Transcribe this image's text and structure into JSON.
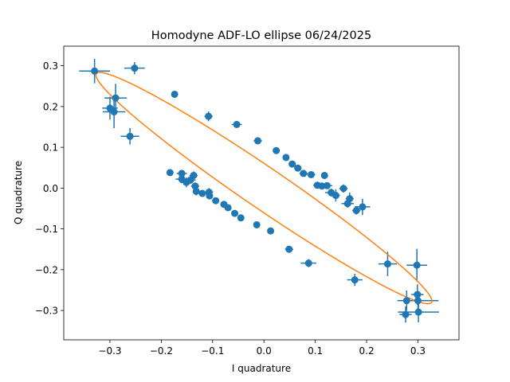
{
  "chart_data": {
    "type": "scatter",
    "title": "Homodyne ADF-LO ellipse 06/24/2025",
    "xlabel": "I quadrature",
    "ylabel": "Q quadrature",
    "xlim": [
      -0.39,
      0.38
    ],
    "ylim": [
      -0.372,
      0.348
    ],
    "xticks": [
      -0.3,
      -0.2,
      -0.1,
      0.0,
      0.1,
      0.2,
      0.3
    ],
    "xtick_labels": [
      "−0.3",
      "−0.2",
      "−0.1",
      "0.0",
      "0.1",
      "0.2",
      "0.3"
    ],
    "yticks": [
      -0.3,
      -0.2,
      -0.1,
      0.0,
      0.1,
      0.2,
      0.3
    ],
    "ytick_labels": [
      "−0.3",
      "−0.2",
      "−0.1",
      "0.0",
      "0.1",
      "0.2",
      "0.3"
    ],
    "grid": false,
    "colors": {
      "points": "#1f77b4",
      "fit": "#ff7f0e"
    },
    "series": [
      {
        "type": "errorbar",
        "points": [
          {
            "x": -0.33,
            "y": 0.287,
            "xerr": 0.03,
            "yerr": 0.03
          },
          {
            "x": -0.252,
            "y": 0.294,
            "xerr": 0.02,
            "yerr": 0.015
          },
          {
            "x": -0.289,
            "y": 0.221,
            "xerr": 0.022,
            "yerr": 0.035
          },
          {
            "x": -0.3,
            "y": 0.196,
            "xerr": 0.015,
            "yerr": 0.028
          },
          {
            "x": -0.292,
            "y": 0.187,
            "xerr": 0.022,
            "yerr": 0.04
          },
          {
            "x": -0.174,
            "y": 0.23,
            "xerr": 0.005,
            "yerr": 0.005
          },
          {
            "x": -0.108,
            "y": 0.176,
            "xerr": 0.008,
            "yerr": 0.012
          },
          {
            "x": -0.053,
            "y": 0.156,
            "xerr": 0.01,
            "yerr": 0.006
          },
          {
            "x": -0.012,
            "y": 0.116,
            "xerr": 0.008,
            "yerr": 0.006
          },
          {
            "x": 0.024,
            "y": 0.092,
            "xerr": 0.006,
            "yerr": 0.005
          },
          {
            "x": 0.043,
            "y": 0.075,
            "xerr": 0.006,
            "yerr": 0.005
          },
          {
            "x": 0.055,
            "y": 0.059,
            "xerr": 0.007,
            "yerr": 0.005
          },
          {
            "x": 0.066,
            "y": 0.049,
            "xerr": 0.007,
            "yerr": 0.005
          },
          {
            "x": 0.077,
            "y": 0.036,
            "xerr": 0.008,
            "yerr": 0.006
          },
          {
            "x": 0.092,
            "y": 0.033,
            "xerr": 0.008,
            "yerr": 0.006
          },
          {
            "x": 0.118,
            "y": 0.031,
            "xerr": 0.006,
            "yerr": 0.007
          },
          {
            "x": 0.104,
            "y": 0.007,
            "xerr": 0.008,
            "yerr": 0.008
          },
          {
            "x": 0.113,
            "y": 0.005,
            "xerr": 0.008,
            "yerr": 0.008
          },
          {
            "x": 0.123,
            "y": 0.006,
            "xerr": 0.01,
            "yerr": 0.008
          },
          {
            "x": 0.131,
            "y": -0.011,
            "xerr": 0.012,
            "yerr": 0.01
          },
          {
            "x": 0.14,
            "y": -0.018,
            "xerr": 0.008,
            "yerr": 0.015
          },
          {
            "x": 0.155,
            "y": -0.001,
            "xerr": 0.008,
            "yerr": 0.01
          },
          {
            "x": 0.163,
            "y": -0.038,
            "xerr": 0.012,
            "yerr": 0.01
          },
          {
            "x": 0.167,
            "y": -0.026,
            "xerr": 0.008,
            "yerr": 0.015
          },
          {
            "x": 0.18,
            "y": -0.055,
            "xerr": 0.008,
            "yerr": 0.01
          },
          {
            "x": 0.192,
            "y": -0.046,
            "xerr": 0.015,
            "yerr": 0.02
          },
          {
            "x": -0.261,
            "y": 0.127,
            "xerr": 0.018,
            "yerr": 0.02
          },
          {
            "x": -0.183,
            "y": 0.038,
            "xerr": 0.005,
            "yerr": 0.005
          },
          {
            "x": -0.16,
            "y": 0.036,
            "xerr": 0.01,
            "yerr": 0.008
          },
          {
            "x": -0.16,
            "y": 0.022,
            "xerr": 0.012,
            "yerr": 0.01
          },
          {
            "x": -0.151,
            "y": 0.014,
            "xerr": 0.012,
            "yerr": 0.012
          },
          {
            "x": -0.143,
            "y": 0.02,
            "xerr": 0.01,
            "yerr": 0.01
          },
          {
            "x": -0.137,
            "y": 0.031,
            "xerr": 0.008,
            "yerr": 0.01
          },
          {
            "x": -0.134,
            "y": 0.005,
            "xerr": 0.008,
            "yerr": 0.008
          },
          {
            "x": -0.132,
            "y": -0.008,
            "xerr": 0.006,
            "yerr": 0.01
          },
          {
            "x": -0.12,
            "y": -0.013,
            "xerr": 0.008,
            "yerr": 0.006
          },
          {
            "x": -0.107,
            "y": -0.01,
            "xerr": 0.008,
            "yerr": 0.01
          },
          {
            "x": -0.106,
            "y": -0.019,
            "xerr": 0.006,
            "yerr": 0.008
          },
          {
            "x": -0.094,
            "y": -0.031,
            "xerr": 0.005,
            "yerr": 0.005
          },
          {
            "x": -0.078,
            "y": -0.04,
            "xerr": 0.005,
            "yerr": 0.005
          },
          {
            "x": -0.07,
            "y": -0.048,
            "xerr": 0.006,
            "yerr": 0.005
          },
          {
            "x": -0.057,
            "y": -0.062,
            "xerr": 0.005,
            "yerr": 0.005
          },
          {
            "x": -0.045,
            "y": -0.073,
            "xerr": 0.005,
            "yerr": 0.005
          },
          {
            "x": -0.014,
            "y": -0.09,
            "xerr": 0.006,
            "yerr": 0.008
          },
          {
            "x": 0.013,
            "y": -0.105,
            "xerr": 0.005,
            "yerr": 0.005
          },
          {
            "x": 0.049,
            "y": -0.15,
            "xerr": 0.008,
            "yerr": 0.008
          },
          {
            "x": 0.087,
            "y": -0.184,
            "xerr": 0.015,
            "yerr": 0.01
          },
          {
            "x": 0.177,
            "y": -0.225,
            "xerr": 0.015,
            "yerr": 0.015
          },
          {
            "x": 0.241,
            "y": -0.186,
            "xerr": 0.018,
            "yerr": 0.03
          },
          {
            "x": 0.298,
            "y": -0.189,
            "xerr": 0.02,
            "yerr": 0.04
          },
          {
            "x": 0.299,
            "y": -0.261,
            "xerr": 0.012,
            "yerr": 0.025
          },
          {
            "x": 0.278,
            "y": -0.276,
            "xerr": 0.015,
            "yerr": 0.025
          },
          {
            "x": 0.3,
            "y": -0.276,
            "xerr": 0.04,
            "yerr": 0.02
          },
          {
            "x": 0.276,
            "y": -0.31,
            "xerr": 0.012,
            "yerr": 0.02
          },
          {
            "x": 0.301,
            "y": -0.304,
            "xerr": 0.04,
            "yerr": 0.025
          }
        ]
      },
      {
        "type": "ellipse_fit",
        "center": [
          0.0,
          0.0
        ],
        "semi_major": 0.4305,
        "semi_minor": 0.0462,
        "angle_deg": -40.8
      }
    ]
  }
}
